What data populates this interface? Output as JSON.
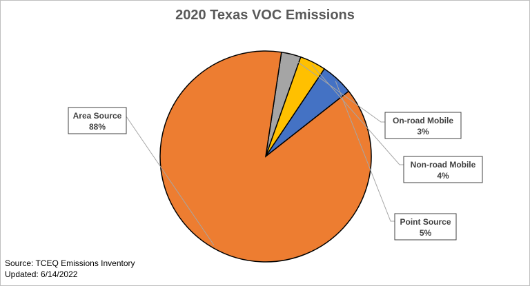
{
  "chart_data": {
    "type": "pie",
    "title": "2020 Texas VOC Emissions",
    "slices": [
      {
        "label": "Area Source",
        "value": 88,
        "display": "88%",
        "color": "#ED7D31"
      },
      {
        "label": "On-road Mobile",
        "value": 3,
        "display": "3%",
        "color": "#A5A5A5"
      },
      {
        "label": "Non-road Mobile",
        "value": 4,
        "display": "4%",
        "color": "#FFC000"
      },
      {
        "label": "Point Source",
        "value": 5,
        "display": "5%",
        "color": "#4472C4"
      }
    ],
    "legend": "none",
    "grid": false
  },
  "footer": {
    "source": "Source: TCEQ Emissions Inventory",
    "updated": "Updated: 6/14/2022"
  }
}
